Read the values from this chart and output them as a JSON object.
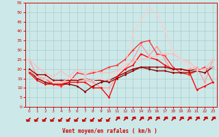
{
  "title": "",
  "xlabel": "Vent moyen/en rafales ( km/h )",
  "bg_color": "#cce8e8",
  "grid_color": "#aacccc",
  "xlim": [
    -0.5,
    23.5
  ],
  "ylim": [
    0,
    55
  ],
  "yticks": [
    0,
    5,
    10,
    15,
    20,
    25,
    30,
    35,
    40,
    45,
    50,
    55
  ],
  "xticks": [
    0,
    1,
    2,
    3,
    4,
    5,
    6,
    7,
    8,
    9,
    10,
    11,
    12,
    13,
    14,
    15,
    16,
    17,
    18,
    19,
    20,
    21,
    22,
    23
  ],
  "series": [
    {
      "x": [
        0,
        1,
        2,
        3,
        4,
        5,
        6,
        7,
        8,
        9,
        10,
        11,
        12,
        13,
        14,
        15,
        16,
        17,
        18,
        19,
        20,
        21,
        22,
        23
      ],
      "y": [
        25,
        16,
        13,
        13,
        13,
        14,
        14,
        14,
        13,
        10,
        10,
        16,
        20,
        25,
        33,
        27,
        32,
        25,
        18,
        18,
        20,
        21,
        13,
        25
      ],
      "color": "#ff9999",
      "lw": 0.9,
      "marker": "D",
      "ms": 1.8
    },
    {
      "x": [
        0,
        1,
        2,
        3,
        4,
        5,
        6,
        7,
        8,
        9,
        10,
        11,
        12,
        13,
        14,
        15,
        16,
        17,
        18,
        19,
        20,
        21,
        22,
        23
      ],
      "y": [
        19,
        16,
        15,
        12,
        11,
        13,
        18,
        17,
        18,
        19,
        21,
        22,
        25,
        30,
        34,
        35,
        28,
        27,
        21,
        18,
        17,
        19,
        21,
        13
      ],
      "color": "#ff3333",
      "lw": 1.0,
      "marker": "D",
      "ms": 1.8
    },
    {
      "x": [
        0,
        1,
        2,
        3,
        4,
        5,
        6,
        7,
        8,
        9,
        10,
        11,
        12,
        13,
        14,
        15,
        16,
        17,
        18,
        19,
        20,
        21,
        22,
        23
      ],
      "y": [
        19,
        15,
        13,
        12,
        12,
        12,
        11,
        8,
        11,
        13,
        14,
        16,
        18,
        20,
        21,
        20,
        19,
        19,
        18,
        18,
        18,
        19,
        18,
        21
      ],
      "color": "#880000",
      "lw": 1.0,
      "marker": "D",
      "ms": 1.8
    },
    {
      "x": [
        0,
        1,
        2,
        3,
        4,
        5,
        6,
        7,
        8,
        9,
        10,
        11,
        12,
        13,
        14,
        15,
        16,
        17,
        18,
        19,
        20,
        21,
        22,
        23
      ],
      "y": [
        18,
        14,
        12,
        12,
        12,
        13,
        13,
        13,
        10,
        10,
        5,
        16,
        20,
        22,
        28,
        26,
        25,
        22,
        20,
        20,
        19,
        9,
        11,
        13
      ],
      "color": "#ff0000",
      "lw": 1.0,
      "marker": "D",
      "ms": 1.8
    },
    {
      "x": [
        0,
        1,
        2,
        3,
        4,
        5,
        6,
        7,
        8,
        9,
        10,
        11,
        12,
        13,
        14,
        15,
        16,
        17,
        18,
        19,
        20,
        21,
        22,
        23
      ],
      "y": [
        20,
        17,
        17,
        14,
        14,
        14,
        14,
        15,
        14,
        14,
        13,
        15,
        17,
        19,
        21,
        21,
        21,
        21,
        20,
        20,
        19,
        20,
        20,
        21
      ],
      "color": "#990000",
      "lw": 1.0,
      "marker": "D",
      "ms": 1.8
    },
    {
      "x": [
        0,
        1,
        2,
        3,
        4,
        5,
        6,
        7,
        8,
        9,
        10,
        11,
        12,
        13,
        14,
        15,
        16,
        17,
        18,
        19,
        20,
        21,
        22,
        23
      ],
      "y": [
        25,
        21,
        18,
        16,
        19,
        16,
        20,
        17,
        19,
        18,
        18,
        19,
        22,
        24,
        25,
        26,
        27,
        28,
        28,
        25,
        24,
        20,
        20,
        25
      ],
      "color": "#ffbbbb",
      "lw": 0.9,
      "marker": "D",
      "ms": 1.8
    },
    {
      "x": [
        0,
        1,
        2,
        3,
        4,
        5,
        6,
        7,
        8,
        9,
        10,
        11,
        12,
        13,
        14,
        15,
        16,
        17,
        18,
        19,
        20,
        21,
        22,
        23
      ],
      "y": [
        19,
        16,
        15,
        13,
        13,
        15,
        15,
        15,
        14,
        15,
        14,
        18,
        22,
        38,
        46,
        52,
        49,
        40,
        30,
        25,
        22,
        19,
        20,
        21
      ],
      "color": "#ffcccc",
      "lw": 0.8,
      "marker": "D",
      "ms": 1.8
    }
  ],
  "arrow_dirs": [
    225,
    225,
    225,
    225,
    225,
    225,
    225,
    225,
    225,
    225,
    225,
    45,
    45,
    45,
    45,
    45,
    45,
    45,
    45,
    45,
    45,
    45,
    45,
    45
  ]
}
